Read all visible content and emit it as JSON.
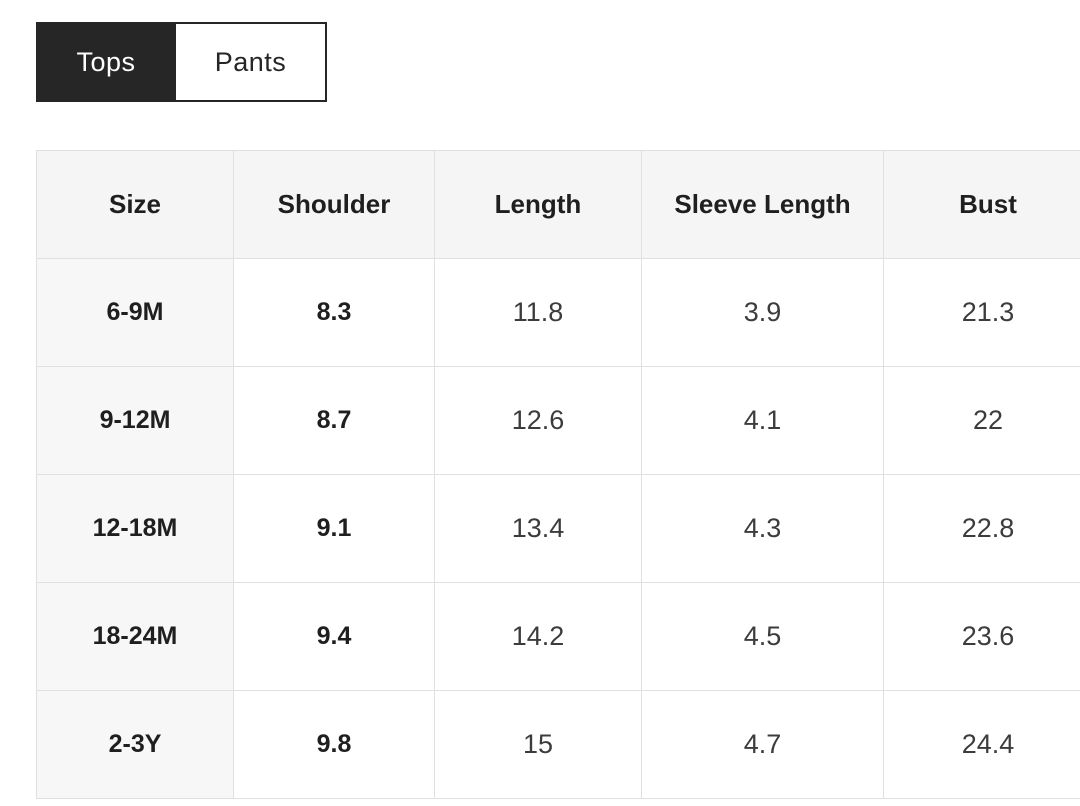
{
  "tabs": {
    "tops": {
      "label": "Tops",
      "active": true
    },
    "pants": {
      "label": "Pants",
      "active": false
    }
  },
  "size_chart": {
    "headers": [
      "Size",
      "Shoulder",
      "Length",
      "Sleeve Length",
      "Bust"
    ],
    "rows": [
      {
        "size": "6-9M",
        "shoulder": "8.3",
        "length": "11.8",
        "sleeve_length": "3.9",
        "bust": "21.3"
      },
      {
        "size": "9-12M",
        "shoulder": "8.7",
        "length": "12.6",
        "sleeve_length": "4.1",
        "bust": "22"
      },
      {
        "size": "12-18M",
        "shoulder": "9.1",
        "length": "13.4",
        "sleeve_length": "4.3",
        "bust": "22.8"
      },
      {
        "size": "18-24M",
        "shoulder": "9.4",
        "length": "14.2",
        "sleeve_length": "4.5",
        "bust": "23.6"
      },
      {
        "size": "2-3Y",
        "shoulder": "9.8",
        "length": "15",
        "sleeve_length": "4.7",
        "bust": "24.4"
      }
    ]
  },
  "colors": {
    "tab_active_bg": "#262626",
    "tab_active_text": "#ffffff",
    "tab_inactive_text": "#262626",
    "header_bg": "#f5f5f5",
    "size_column_bg": "#f7f7f7",
    "cell_border": "#e0e0e0"
  }
}
